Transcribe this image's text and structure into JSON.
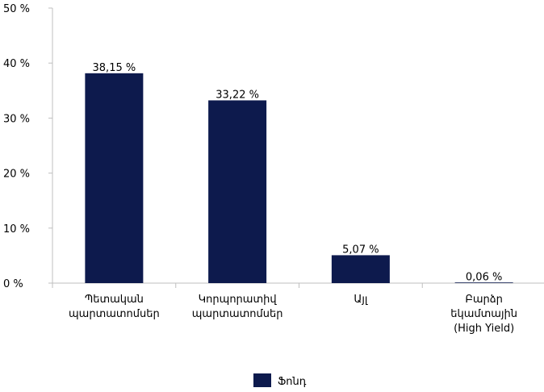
{
  "chart_data": {
    "type": "bar",
    "categories": [
      [
        "Պետական",
        "պարտատոմսեր"
      ],
      [
        "Կորպորատիվ",
        "պարտատոմսեր"
      ],
      [
        "Այլ"
      ],
      [
        "Բարձր",
        "եկամտային",
        "(High Yield)"
      ]
    ],
    "series": [
      {
        "name": "Ֆոնդ",
        "values": [
          38.15,
          33.22,
          5.07,
          0.06
        ],
        "labels": [
          "38,15 %",
          "33,22 %",
          "5,07 %",
          "0,06 %"
        ],
        "color": "#0d1a4d"
      }
    ],
    "ylim": [
      0,
      50
    ],
    "yticks": [
      0,
      10,
      20,
      30,
      40,
      50
    ],
    "ytick_labels": [
      "0 %",
      "10 %",
      "20 %",
      "30 %",
      "40 %",
      "50 %"
    ],
    "grid": false,
    "legend": "bottom"
  }
}
